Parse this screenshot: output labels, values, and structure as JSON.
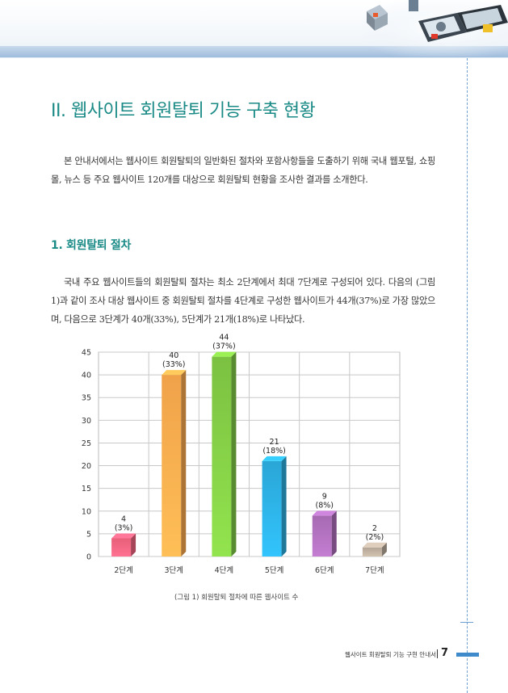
{
  "section_title": "II. 웹사이트 회원탈퇴 기능 구축 현황",
  "intro_paragraph": "본 안내서에서는 웹사이트 회원탈퇴의 일반화된 절차와 포함사항들을 도출하기 위해 국내 웹포털, 쇼핑몰, 뉴스 등 주요 웹사이트 120개를 대상으로 회원탈퇴 현황을 조사한 결과를 소개한다.",
  "subsection_title": "1. 회원탈퇴 절차",
  "body_paragraph": "국내 주요 웹사이트들의 회원탈퇴 절차는 최소 2단계에서 최대 7단계로 구성되어 있다. 다음의 (그림 1)과 같이 조사 대상 웹사이트 중 회원탈퇴 절차를 4단계로 구성한 웹사이트가 44개(37%)로 가장 많았으며, 다음으로 3단계가 40개(33%), 5단계가 21개(18%)로 나타났다.",
  "chart_data": {
    "type": "bar",
    "categories": [
      "2단계",
      "3단계",
      "4단계",
      "5단계",
      "6단계",
      "7단계"
    ],
    "values": [
      4,
      40,
      44,
      21,
      9,
      2
    ],
    "value_labels": [
      "4",
      "40",
      "44",
      "21",
      "9",
      "2"
    ],
    "percent_labels": [
      "(3%)",
      "(33%)",
      "(37%)",
      "(18%)",
      "(8%)",
      "(2%)"
    ],
    "colors": [
      "#e8607a",
      "#f0a24a",
      "#7cc142",
      "#2aa6d6",
      "#a66ab2",
      "#b3a596"
    ],
    "ylim": [
      0,
      45
    ],
    "yticks": [
      0,
      5,
      10,
      15,
      20,
      25,
      30,
      35,
      40,
      45
    ],
    "grid": true
  },
  "figure_caption": "(그림 1) 회원탈퇴 절차에 따른 웹사이트 수",
  "footer": {
    "guide_name": "웹사이트 회원탈퇴 기능 구현 안내서",
    "page_number": "7"
  }
}
